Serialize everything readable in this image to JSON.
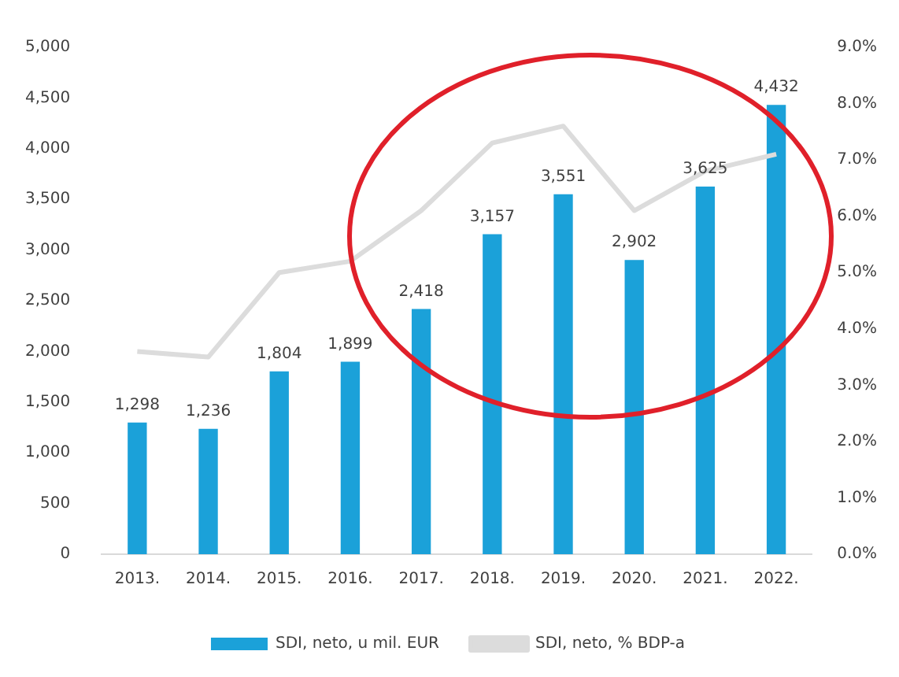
{
  "chart_data": {
    "type": "bar",
    "categories": [
      "2013.",
      "2014.",
      "2015.",
      "2016.",
      "2017.",
      "2018.",
      "2019.",
      "2020.",
      "2021.",
      "2022."
    ],
    "series": [
      {
        "name": "SDI, neto, u mil. EUR",
        "color": "#1ba1d9",
        "values": [
          1298,
          1236,
          1804,
          1899,
          2418,
          3157,
          3551,
          2902,
          3625,
          4432
        ],
        "value_labels": [
          "1,298",
          "1,236",
          "1,804",
          "1,899",
          "2,418",
          "3,157",
          "3,551",
          "2,902",
          "3,625",
          "4,432"
        ]
      },
      {
        "name": "SDI, neto, % BDP-a",
        "type": "line",
        "axis": "y2",
        "color": "#dcdcdc",
        "values": [
          3.6,
          3.5,
          5.0,
          5.2,
          6.1,
          7.3,
          7.6,
          6.1,
          6.8,
          7.1
        ]
      }
    ],
    "ylim": [
      0,
      5000
    ],
    "yticks": [
      {
        "value": 0,
        "label": "0"
      },
      {
        "value": 500,
        "label": "500"
      },
      {
        "value": 1000,
        "label": "1,000"
      },
      {
        "value": 1500,
        "label": "1,500"
      },
      {
        "value": 2000,
        "label": "2,000"
      },
      {
        "value": 2500,
        "label": "2,500"
      },
      {
        "value": 3000,
        "label": "3,000"
      },
      {
        "value": 3500,
        "label": "3,500"
      },
      {
        "value": 4000,
        "label": "4,000"
      },
      {
        "value": 4500,
        "label": "4,500"
      },
      {
        "value": 5000,
        "label": "5,000"
      }
    ],
    "y2lim": [
      0,
      9
    ],
    "y2ticks": [
      {
        "value": 0,
        "label": "0.0%"
      },
      {
        "value": 1,
        "label": "1.0%"
      },
      {
        "value": 2,
        "label": "2.0%"
      },
      {
        "value": 3,
        "label": "3.0%"
      },
      {
        "value": 4,
        "label": "4.0%"
      },
      {
        "value": 5,
        "label": "5.0%"
      },
      {
        "value": 6,
        "label": "6.0%"
      },
      {
        "value": 7,
        "label": "7.0%"
      },
      {
        "value": 8,
        "label": "8.0%"
      },
      {
        "value": 9,
        "label": "9.0%"
      }
    ],
    "grid": false,
    "legend": "bottom",
    "marker": "none"
  }
}
